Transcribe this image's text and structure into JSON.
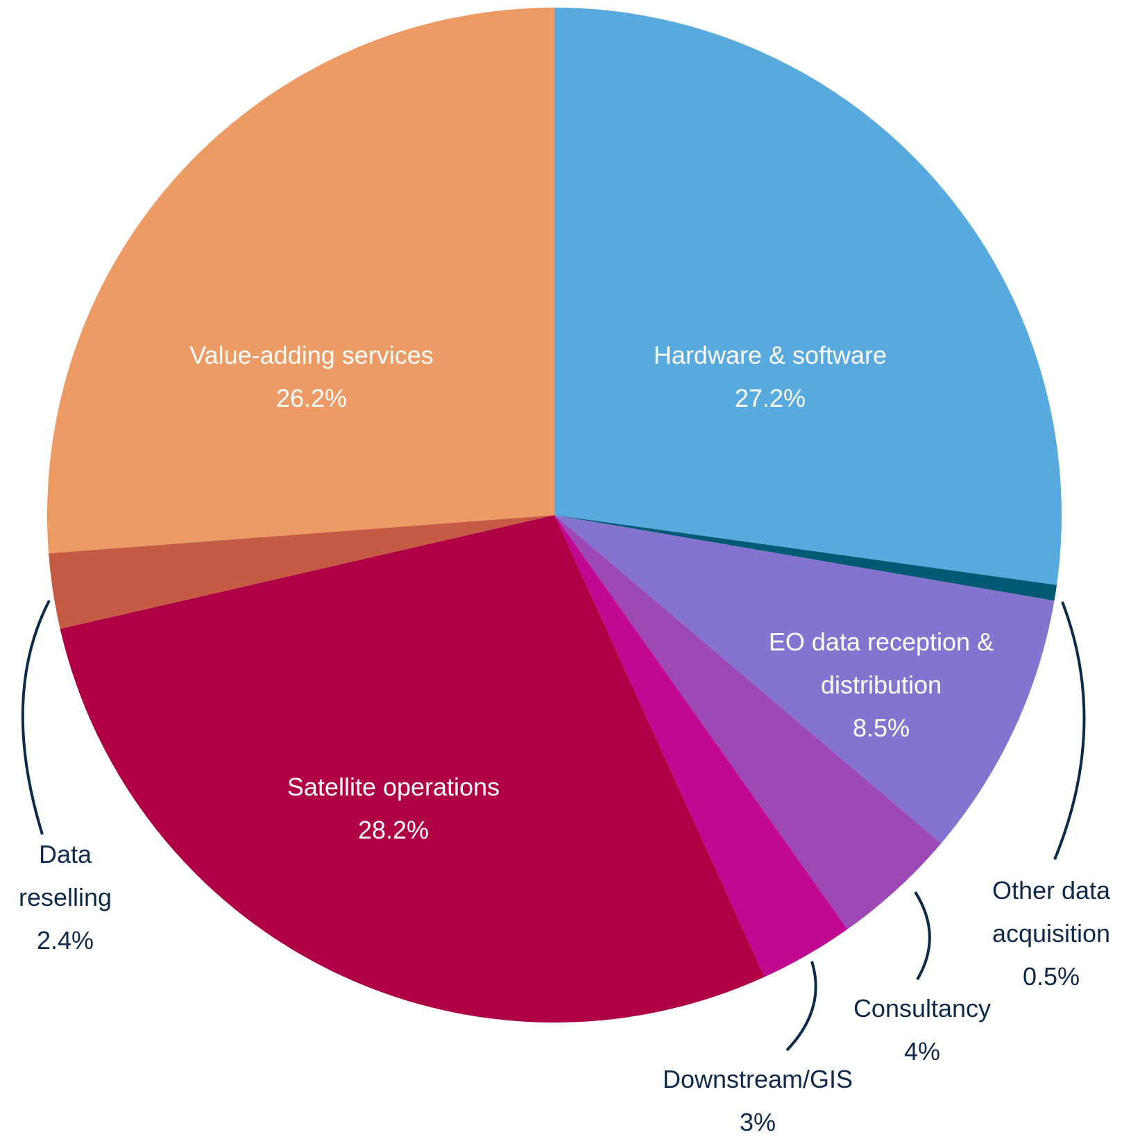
{
  "chart_data": {
    "type": "pie",
    "categories": [
      "Hardware & software",
      "Other data acquisition",
      "EO data reception & distribution",
      "Consultancy",
      "Downstream/GIS",
      "Satellite operations",
      "Data reselling",
      "Value-adding services"
    ],
    "values": [
      27.2,
      0.5,
      8.5,
      4,
      3,
      28.2,
      2.4,
      26.2
    ],
    "value_labels": [
      "27.2%",
      "0.5%",
      "8.5%",
      "4%",
      "3%",
      "28.2%",
      "2.4%",
      "26.2%"
    ],
    "colors": [
      "#57a9de",
      "#005a73",
      "#8474cf",
      "#9c48b5",
      "#c00891",
      "#b00045",
      "#c55a45",
      "#eb9b63"
    ]
  }
}
